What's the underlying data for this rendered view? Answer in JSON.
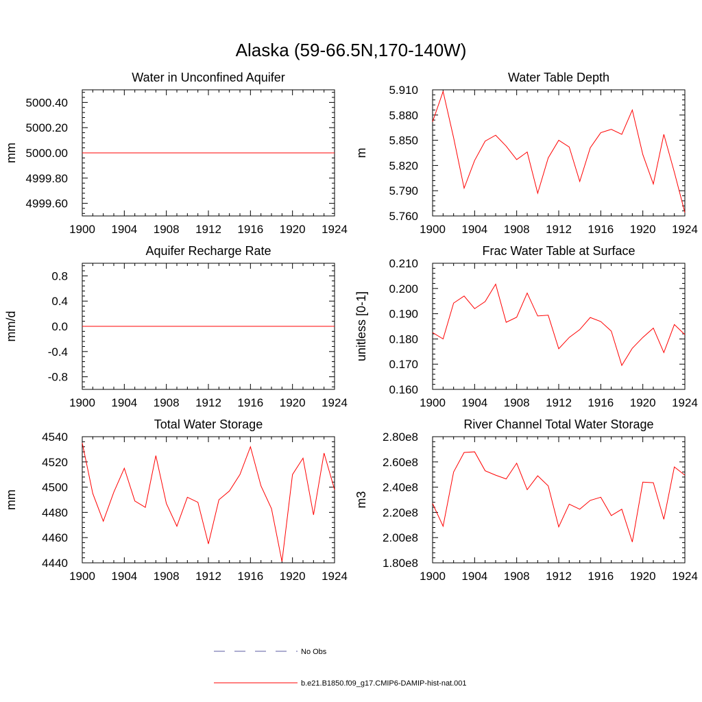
{
  "title": "Alaska (59-66.5N,170-140W)",
  "colors": {
    "model": "#ff0000",
    "obs": "#5a5aa0",
    "axis": "#000000"
  },
  "legend": {
    "obs_label": "No Obs",
    "model_label": "b.e21.B1850.f09_g17.CMIP6-DAMIP-hist-nat.001"
  },
  "chart_data": [
    {
      "type": "line",
      "title": "Water in Unconfined Aquifer",
      "ylabel": "mm",
      "xlim": [
        1900,
        1924
      ],
      "ylim": [
        4999.5,
        5000.5
      ],
      "xticks": [
        "1900",
        "1904",
        "1908",
        "1912",
        "1916",
        "1920",
        "1924"
      ],
      "yticks": [
        "4999.60",
        "4999.80",
        "5000.00",
        "5000.20",
        "5000.40"
      ],
      "x": [
        1900,
        1901,
        1902,
        1903,
        1904,
        1905,
        1906,
        1907,
        1908,
        1909,
        1910,
        1911,
        1912,
        1913,
        1914,
        1915,
        1916,
        1917,
        1918,
        1919,
        1920,
        1921,
        1922,
        1923,
        1924
      ],
      "values": [
        5000,
        5000,
        5000,
        5000,
        5000,
        5000,
        5000,
        5000,
        5000,
        5000,
        5000,
        5000,
        5000,
        5000,
        5000,
        5000,
        5000,
        5000,
        5000,
        5000,
        5000,
        5000,
        5000,
        5000,
        5000
      ]
    },
    {
      "type": "line",
      "title": "Water Table Depth",
      "ylabel": "m",
      "xlim": [
        1900,
        1924
      ],
      "ylim": [
        5.76,
        5.91
      ],
      "xticks": [
        "1900",
        "1904",
        "1908",
        "1912",
        "1916",
        "1920",
        "1924"
      ],
      "yticks": [
        "5.760",
        "5.790",
        "5.820",
        "5.850",
        "5.880",
        "5.910"
      ],
      "x": [
        1900,
        1901,
        1902,
        1903,
        1904,
        1905,
        1906,
        1907,
        1908,
        1909,
        1910,
        1911,
        1912,
        1913,
        1914,
        1915,
        1916,
        1917,
        1918,
        1919,
        1920,
        1921,
        1922,
        1923,
        1924
      ],
      "values": [
        5.872,
        5.908,
        5.853,
        5.793,
        5.826,
        5.849,
        5.856,
        5.843,
        5.827,
        5.836,
        5.787,
        5.829,
        5.85,
        5.842,
        5.801,
        5.841,
        5.859,
        5.863,
        5.857,
        5.886,
        5.833,
        5.798,
        5.857,
        5.812,
        5.764
      ]
    },
    {
      "type": "line",
      "title": "Aquifer Recharge Rate",
      "ylabel": "mm/d",
      "xlim": [
        1900,
        1924
      ],
      "ylim": [
        -1.0,
        1.0
      ],
      "xticks": [
        "1900",
        "1904",
        "1908",
        "1912",
        "1916",
        "1920",
        "1924"
      ],
      "yticks": [
        "-0.8",
        "-0.4",
        "0.0",
        "0.4",
        "0.8"
      ],
      "x": [
        1900,
        1901,
        1902,
        1903,
        1904,
        1905,
        1906,
        1907,
        1908,
        1909,
        1910,
        1911,
        1912,
        1913,
        1914,
        1915,
        1916,
        1917,
        1918,
        1919,
        1920,
        1921,
        1922,
        1923,
        1924
      ],
      "values": [
        0,
        0,
        0,
        0,
        0,
        0,
        0,
        0,
        0,
        0,
        0,
        0,
        0,
        0,
        0,
        0,
        0,
        0,
        0,
        0,
        0,
        0,
        0,
        0,
        0
      ]
    },
    {
      "type": "line",
      "title": "Frac Water Table at Surface",
      "ylabel": "unitless [0-1]",
      "xlim": [
        1900,
        1924
      ],
      "ylim": [
        0.16,
        0.21
      ],
      "xticks": [
        "1900",
        "1904",
        "1908",
        "1912",
        "1916",
        "1920",
        "1924"
      ],
      "yticks": [
        "0.160",
        "0.170",
        "0.180",
        "0.190",
        "0.200",
        "0.210"
      ],
      "x": [
        1900,
        1901,
        1902,
        1903,
        1904,
        1905,
        1906,
        1907,
        1908,
        1909,
        1910,
        1911,
        1912,
        1913,
        1914,
        1915,
        1916,
        1917,
        1918,
        1919,
        1920,
        1921,
        1922,
        1923,
        1924
      ],
      "values": [
        0.1825,
        0.18,
        0.1942,
        0.197,
        0.192,
        0.1948,
        0.2017,
        0.1866,
        0.1886,
        0.1982,
        0.1891,
        0.1894,
        0.1761,
        0.1806,
        0.1837,
        0.1885,
        0.1869,
        0.1831,
        0.1695,
        0.1763,
        0.1806,
        0.1843,
        0.1746,
        0.1857,
        0.1817
      ]
    },
    {
      "type": "line",
      "title": "Total Water Storage",
      "ylabel": "mm",
      "xlim": [
        1900,
        1924
      ],
      "ylim": [
        4440,
        4540
      ],
      "xticks": [
        "1900",
        "1904",
        "1908",
        "1912",
        "1916",
        "1920",
        "1924"
      ],
      "yticks": [
        "4440",
        "4460",
        "4480",
        "4500",
        "4520",
        "4540"
      ],
      "x": [
        1900,
        1901,
        1902,
        1903,
        1904,
        1905,
        1906,
        1907,
        1908,
        1909,
        1910,
        1911,
        1912,
        1913,
        1914,
        1915,
        1916,
        1917,
        1918,
        1919,
        1920,
        1921,
        1922,
        1923,
        1924
      ],
      "values": [
        4535,
        4495,
        4473,
        4496,
        4515,
        4489,
        4484,
        4525,
        4487,
        4469,
        4492,
        4488,
        4455,
        4490,
        4497,
        4510,
        4532,
        4501,
        4483,
        4441,
        4510,
        4523,
        4478,
        4527,
        4498
      ]
    },
    {
      "type": "line",
      "title": "River Channel Total Water Storage",
      "ylabel": "m3",
      "xlim": [
        1900,
        1924
      ],
      "ylim": [
        180000000,
        280000000
      ],
      "xticks": [
        "1900",
        "1904",
        "1908",
        "1912",
        "1916",
        "1920",
        "1924"
      ],
      "yticks": [
        "1.80e8",
        "2.00e8",
        "2.20e8",
        "2.40e8",
        "2.60e8",
        "2.80e8"
      ],
      "x": [
        1900,
        1901,
        1902,
        1903,
        1904,
        1905,
        1906,
        1907,
        1908,
        1909,
        1910,
        1911,
        1912,
        1913,
        1914,
        1915,
        1916,
        1917,
        1918,
        1919,
        1920,
        1921,
        1922,
        1923,
        1924
      ],
      "values": [
        227000000,
        209000000,
        252000000,
        267500000,
        268000000,
        253000000,
        249500000,
        246500000,
        259000000,
        238000000,
        249000000,
        241000000,
        208500000,
        226500000,
        222500000,
        229500000,
        232000000,
        217500000,
        222500000,
        196500000,
        244000000,
        243500000,
        214500000,
        256000000,
        249500000
      ]
    }
  ]
}
